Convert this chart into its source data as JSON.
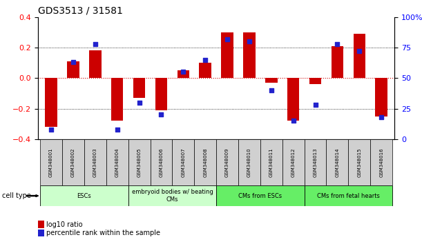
{
  "title": "GDS3513 / 31581",
  "samples": [
    "GSM348001",
    "GSM348002",
    "GSM348003",
    "GSM348004",
    "GSM348005",
    "GSM348006",
    "GSM348007",
    "GSM348008",
    "GSM348009",
    "GSM348010",
    "GSM348011",
    "GSM348012",
    "GSM348013",
    "GSM348014",
    "GSM348015",
    "GSM348016"
  ],
  "log10_ratio": [
    -0.32,
    0.11,
    0.18,
    -0.28,
    -0.13,
    -0.21,
    0.05,
    0.1,
    0.3,
    0.3,
    -0.03,
    -0.28,
    -0.04,
    0.21,
    0.29,
    -0.25
  ],
  "percentile_rank": [
    8,
    63,
    78,
    8,
    30,
    20,
    55,
    65,
    82,
    80,
    40,
    15,
    28,
    78,
    72,
    18
  ],
  "bar_color": "#cc0000",
  "dot_color": "#2222cc",
  "ylim_left": [
    -0.4,
    0.4
  ],
  "ylim_right": [
    0,
    100
  ],
  "yticks_left": [
    -0.4,
    -0.2,
    0.0,
    0.2,
    0.4
  ],
  "yticks_right": [
    0,
    25,
    50,
    75,
    100
  ],
  "ytick_labels_right": [
    "0",
    "25",
    "50",
    "75",
    "100%"
  ],
  "groups": [
    {
      "label": "ESCs",
      "start": 0,
      "end": 3,
      "color": "#ccffcc"
    },
    {
      "label": "embryoid bodies w/ beating\nCMs",
      "start": 4,
      "end": 7,
      "color": "#ccffcc"
    },
    {
      "label": "CMs from ESCs",
      "start": 8,
      "end": 11,
      "color": "#66ee66"
    },
    {
      "label": "CMs from fetal hearts",
      "start": 12,
      "end": 15,
      "color": "#66ee66"
    }
  ],
  "cell_type_label": "cell type",
  "legend_red": "log10 ratio",
  "legend_blue": "percentile rank within the sample",
  "zero_line_color": "#cc0000",
  "bar_width": 0.55
}
